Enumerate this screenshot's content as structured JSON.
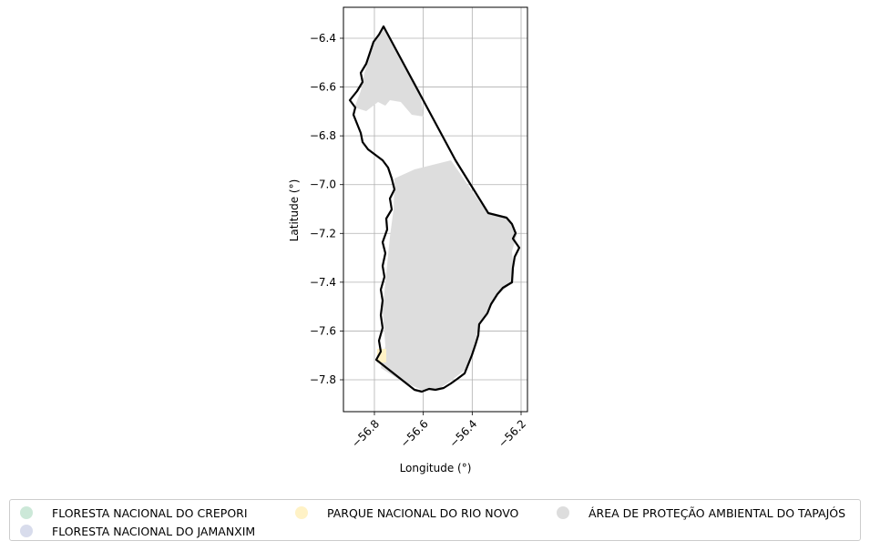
{
  "map": {
    "x_label": "Longitude (°)",
    "y_label": "Latitude (°)",
    "x_ticks": [
      "−56.8",
      "−56.6",
      "−56.4",
      "−56.2"
    ],
    "y_ticks": [
      "−6.4",
      "−6.6",
      "−6.8",
      "−7.0",
      "−7.2",
      "−7.4",
      "−7.6",
      "−7.8"
    ],
    "x_tick_values": [
      -56.8,
      -56.6,
      -56.4,
      -56.2
    ],
    "y_tick_values": [
      -6.4,
      -6.6,
      -6.8,
      -7.0,
      -7.2,
      -7.4,
      -7.6,
      -7.8
    ],
    "grid": true,
    "boundary_color": "#000000",
    "fill_color": "#dddddd"
  },
  "legend": {
    "placement": "bottom",
    "items": [
      {
        "label": "FLORESTA NACIONAL DO CREPORI",
        "color": "#cce8d8"
      },
      {
        "label": "FLORESTA NACIONAL DO JAMANXIM",
        "color": "#d8dcec"
      },
      {
        "label": "PARQUE NACIONAL DO RIO NOVO",
        "color": "#fff2c6"
      },
      {
        "label": "ÁREA DE PROTEÇÃO AMBIENTAL DO TAPAJÓS",
        "color": "#dddddd"
      }
    ]
  }
}
